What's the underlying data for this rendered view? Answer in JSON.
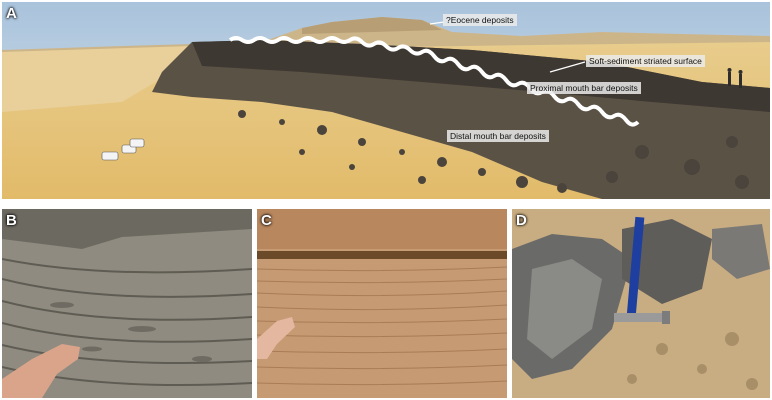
{
  "panels": {
    "a": {
      "label": "A"
    },
    "b": {
      "label": "B"
    },
    "c": {
      "label": "C"
    },
    "d": {
      "label": "D"
    }
  },
  "annotations": {
    "eocene": "?Eocene deposits",
    "striated": "Soft-sediment striated surface",
    "proximal": "Proximal mouth bar deposits",
    "distal": "Distal  mouth bar deposits"
  }
}
